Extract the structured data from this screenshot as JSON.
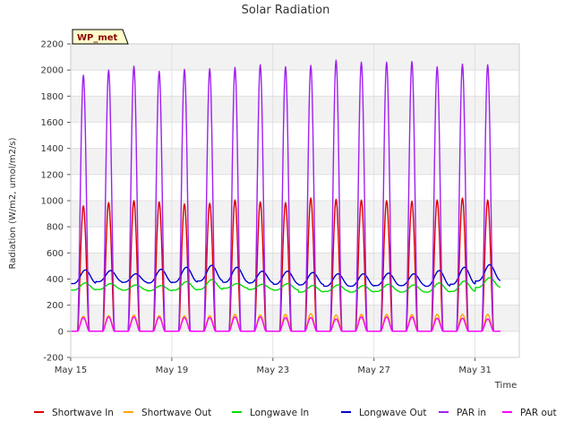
{
  "chart_data": {
    "type": "line",
    "title": "Solar Radiation",
    "xlabel": "Time",
    "ylabel": "Radiation (W/m2, umol/m2/s)",
    "site_label": "WP_met",
    "ylim": [
      -200,
      2200
    ],
    "xlim_days": [
      15,
      32.75
    ],
    "y_ticks": [
      -200,
      0,
      200,
      400,
      600,
      800,
      1000,
      1200,
      1400,
      1600,
      1800,
      2000,
      2200
    ],
    "x_ticks": [
      {
        "day": 15,
        "label": "May 15"
      },
      {
        "day": 19,
        "label": "May 19"
      },
      {
        "day": 23,
        "label": "May 23"
      },
      {
        "day": 27,
        "label": "May 27"
      },
      {
        "day": 31,
        "label": "May 31"
      }
    ],
    "grid": true,
    "background_bands": true,
    "legend_position": "bottom",
    "days": [
      "2024-05-15",
      "2024-05-16",
      "2024-05-17",
      "2024-05-18",
      "2024-05-19",
      "2024-05-20",
      "2024-05-21",
      "2024-05-22",
      "2024-05-23",
      "2024-05-24",
      "2024-05-25",
      "2024-05-26",
      "2024-05-27",
      "2024-05-28",
      "2024-05-29",
      "2024-05-30",
      "2024-05-31",
      "2024-06-01"
    ],
    "series": [
      {
        "name": "Shortwave In",
        "color": "#dd0000",
        "kind": "diurnal",
        "daily_peak": [
          960,
          985,
          1000,
          990,
          975,
          980,
          1005,
          990,
          985,
          1020,
          1010,
          1005,
          1000,
          995,
          1005,
          1020,
          1005
        ],
        "night_value": 0
      },
      {
        "name": "Shortwave Out",
        "color": "#ffa500",
        "kind": "diurnal",
        "daily_peak": [
          115,
          120,
          125,
          120,
          118,
          120,
          130,
          125,
          130,
          135,
          125,
          130,
          130,
          128,
          130,
          130,
          130
        ],
        "night_value": 0
      },
      {
        "name": "Longwave In",
        "color": "#00dd00",
        "kind": "continuous",
        "daily_min": [
          315,
          320,
          315,
          310,
          315,
          320,
          330,
          320,
          315,
          300,
          305,
          300,
          305,
          300,
          300,
          305,
          335
        ],
        "daily_max": [
          370,
          365,
          355,
          350,
          380,
          395,
          365,
          360,
          365,
          350,
          355,
          350,
          360,
          355,
          370,
          385,
          410
        ]
      },
      {
        "name": "Longwave Out",
        "color": "#0000cc",
        "kind": "continuous",
        "daily_min": [
          365,
          380,
          375,
          370,
          375,
          385,
          375,
          370,
          360,
          355,
          345,
          345,
          350,
          350,
          345,
          360,
          385
        ],
        "daily_max": [
          470,
          465,
          440,
          475,
          490,
          505,
          490,
          460,
          460,
          450,
          440,
          440,
          445,
          440,
          465,
          490,
          510
        ]
      },
      {
        "name": "PAR in",
        "color": "#a020f0",
        "kind": "diurnal",
        "daily_peak": [
          1960,
          2000,
          2030,
          1990,
          2005,
          2010,
          2020,
          2040,
          2025,
          2035,
          2075,
          2060,
          2060,
          2065,
          2025,
          2045,
          2040
        ],
        "night_value": 0
      },
      {
        "name": "PAR out",
        "color": "#ff00ff",
        "kind": "diurnal",
        "daily_peak": [
          105,
          110,
          110,
          108,
          105,
          105,
          110,
          110,
          105,
          105,
          95,
          110,
          110,
          110,
          100,
          100,
          95
        ],
        "night_value": 0
      }
    ]
  }
}
